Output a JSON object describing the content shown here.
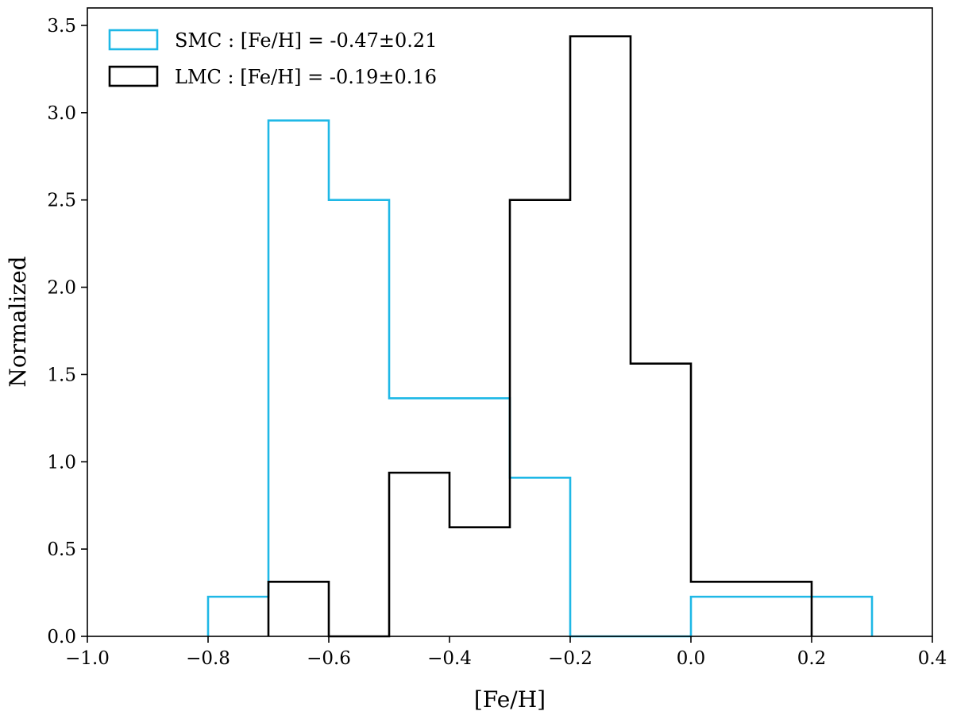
{
  "chart_data": {
    "type": "histogram",
    "xlabel": "[Fe/H]",
    "ylabel": "Normalized",
    "xlim": [
      -1.0,
      0.4
    ],
    "ylim": [
      0.0,
      3.6
    ],
    "xticks": [
      -1.0,
      -0.8,
      -0.6,
      -0.4,
      -0.2,
      0.0,
      0.2,
      0.4
    ],
    "xtick_labels": [
      "−1.0",
      "−0.8",
      "−0.6",
      "−0.4",
      "−0.2",
      "0.0",
      "0.2",
      "0.4"
    ],
    "yticks": [
      0.0,
      0.5,
      1.0,
      1.5,
      2.0,
      2.5,
      3.0,
      3.5
    ],
    "ytick_labels": [
      "0.0",
      "0.5",
      "1.0",
      "1.5",
      "2.0",
      "2.5",
      "3.0",
      "3.5"
    ],
    "legend_position": "top-left",
    "grid": false,
    "series": [
      {
        "name": "SMC : [Fe/H] = -0.47±0.21",
        "color": "#1fb8e6",
        "bin_edges": [
          -0.8,
          -0.7,
          -0.6,
          -0.5,
          -0.4,
          -0.3,
          -0.2,
          -0.1,
          0.0,
          0.1,
          0.2,
          0.3
        ],
        "values": [
          0.227,
          2.955,
          2.5,
          1.364,
          1.364,
          0.909,
          0.0,
          0.0,
          0.227,
          0.227,
          0.227
        ]
      },
      {
        "name": "LMC : [Fe/H] = -0.19±0.16",
        "color": "#000000",
        "bin_edges": [
          -0.7,
          -0.6,
          -0.5,
          -0.4,
          -0.3,
          -0.2,
          -0.1,
          0.0,
          0.1,
          0.2
        ],
        "values": [
          0.3125,
          0.0,
          0.9375,
          0.625,
          2.5,
          3.4375,
          1.5625,
          0.3125,
          0.3125
        ]
      }
    ]
  }
}
